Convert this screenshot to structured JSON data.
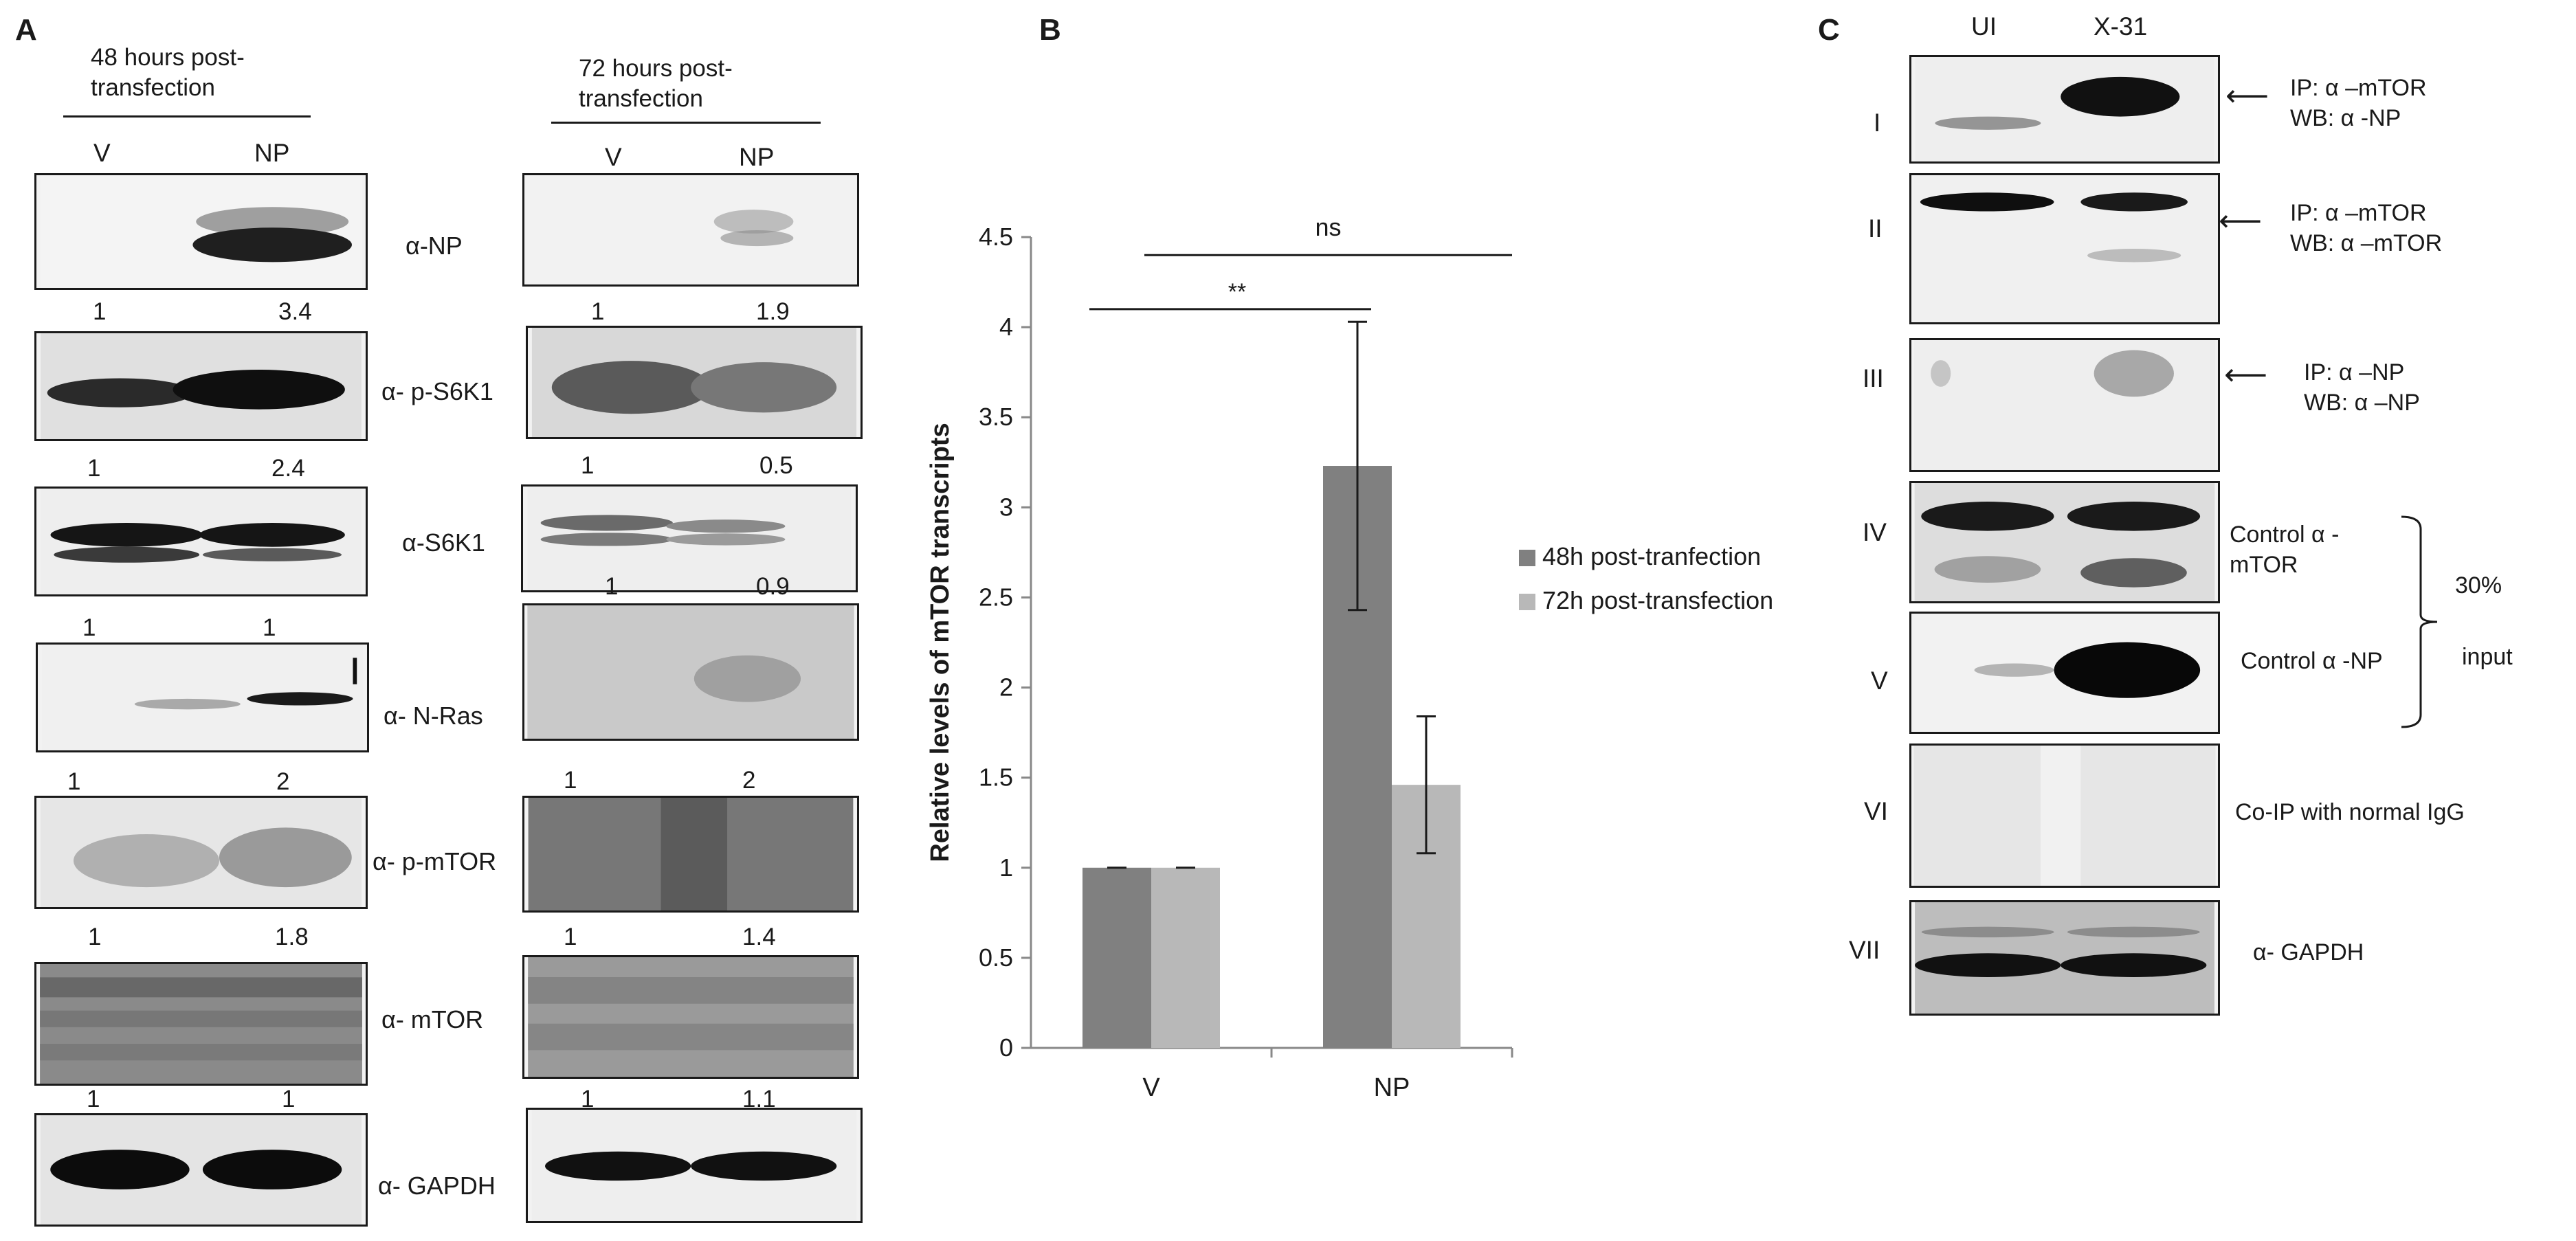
{
  "panelA": {
    "letter": "A",
    "header48": "48 hours post-transfection",
    "header72": "72 hours post-transfection",
    "lanes48": [
      "V",
      "NP"
    ],
    "lanes72": [
      "V",
      "NP"
    ],
    "rows": [
      {
        "antibody": "α-NP",
        "q48": [
          "",
          ""
        ],
        "q72": [
          "",
          ""
        ]
      },
      {
        "antibody": "α- p-S6K1",
        "q48": [
          "1",
          "3.4"
        ],
        "q72": [
          "1",
          "1.9"
        ]
      },
      {
        "antibody": "α-S6K1",
        "q48": [
          "1",
          "2.4"
        ],
        "q72": [
          "1",
          "0.5"
        ]
      },
      {
        "antibody": "α- N-Ras",
        "q48": [
          "1",
          "1"
        ],
        "q72": [
          "1",
          "0.9"
        ]
      },
      {
        "antibody": "α- p-mTOR",
        "q48": [
          "1",
          "2"
        ],
        "q72": [
          "1",
          "2"
        ]
      },
      {
        "antibody": "α- mTOR",
        "q48": [
          "1",
          "1.8"
        ],
        "q72": [
          "1",
          "1.4"
        ]
      },
      {
        "antibody": "α- GAPDH",
        "q48": [
          "1",
          "1"
        ],
        "q72": [
          "1",
          "1.1"
        ]
      }
    ]
  },
  "panelB": {
    "letter": "B"
  },
  "chart_data": {
    "type": "bar",
    "categories": [
      "V",
      "NP"
    ],
    "series": [
      {
        "name": "48h post-tranfection",
        "values": [
          1.0,
          3.23
        ],
        "errors": [
          0.0,
          0.8
        ],
        "color": "#808080"
      },
      {
        "name": "72h post-transfection",
        "values": [
          1.0,
          1.46
        ],
        "errors": [
          0.0,
          0.38
        ],
        "color": "#b8b8b8"
      }
    ],
    "ylabel": "Relative levels of mTOR transcripts",
    "xlabel": "",
    "ylim": [
      0,
      4.5
    ],
    "yticks": [
      "0",
      "0.5",
      "1",
      "1.5",
      "2",
      "2.5",
      "3",
      "3.5",
      "4",
      "4.5"
    ],
    "annotations": [
      "**",
      "ns"
    ],
    "legend_position": "right"
  },
  "panelC": {
    "letter": "C",
    "lanes": [
      "UI",
      "X-31"
    ],
    "rows": [
      {
        "roman": "I",
        "label": "IP: α –mTOR\nWB: α -NP"
      },
      {
        "roman": "II",
        "label": "IP: α –mTOR\nWB: α –mTOR"
      },
      {
        "roman": "III",
        "label": "IP: α –NP\nWB: α –NP"
      },
      {
        "roman": "IV",
        "label": "Control α -\nmTOR"
      },
      {
        "roman": "V",
        "label": "Control α -NP"
      },
      {
        "roman": "VI",
        "label": "Co-IP with normal IgG"
      },
      {
        "roman": "VII",
        "label": "α- GAPDH"
      }
    ],
    "bracket_top": "30%",
    "bracket_bottom": "input"
  }
}
